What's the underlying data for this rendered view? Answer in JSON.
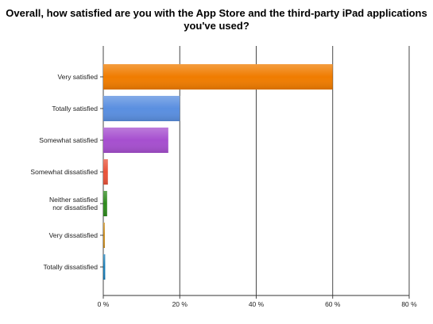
{
  "chart_data": {
    "type": "bar",
    "orientation": "horizontal",
    "title": "Overall, how satisfied are you with the App Store and the third-party iPad applications you've used?",
    "categories": [
      [
        "Very satisfied"
      ],
      [
        "Totally satisfied"
      ],
      [
        "Somewhat satisfied"
      ],
      [
        "Somewhat dissatisfied"
      ],
      [
        "Neither satisfied",
        "nor dissatisfied"
      ],
      [
        "Very dissatisfied"
      ],
      [
        "Totally dissatisfied"
      ]
    ],
    "values": [
      60,
      20,
      17,
      1.2,
      1,
      0.4,
      0.5
    ],
    "colors": [
      "#f07c00",
      "#5a8fe0",
      "#a64fcf",
      "#e8533a",
      "#2f8a1e",
      "#c98a1a",
      "#1c7fb8"
    ],
    "xlim": [
      0,
      80
    ],
    "ticks": [
      0,
      20,
      40,
      60,
      80
    ],
    "tick_labels": [
      "0 %",
      "20 %",
      "40 %",
      "60 %",
      "80 %"
    ],
    "grid": true,
    "legend": "none"
  }
}
